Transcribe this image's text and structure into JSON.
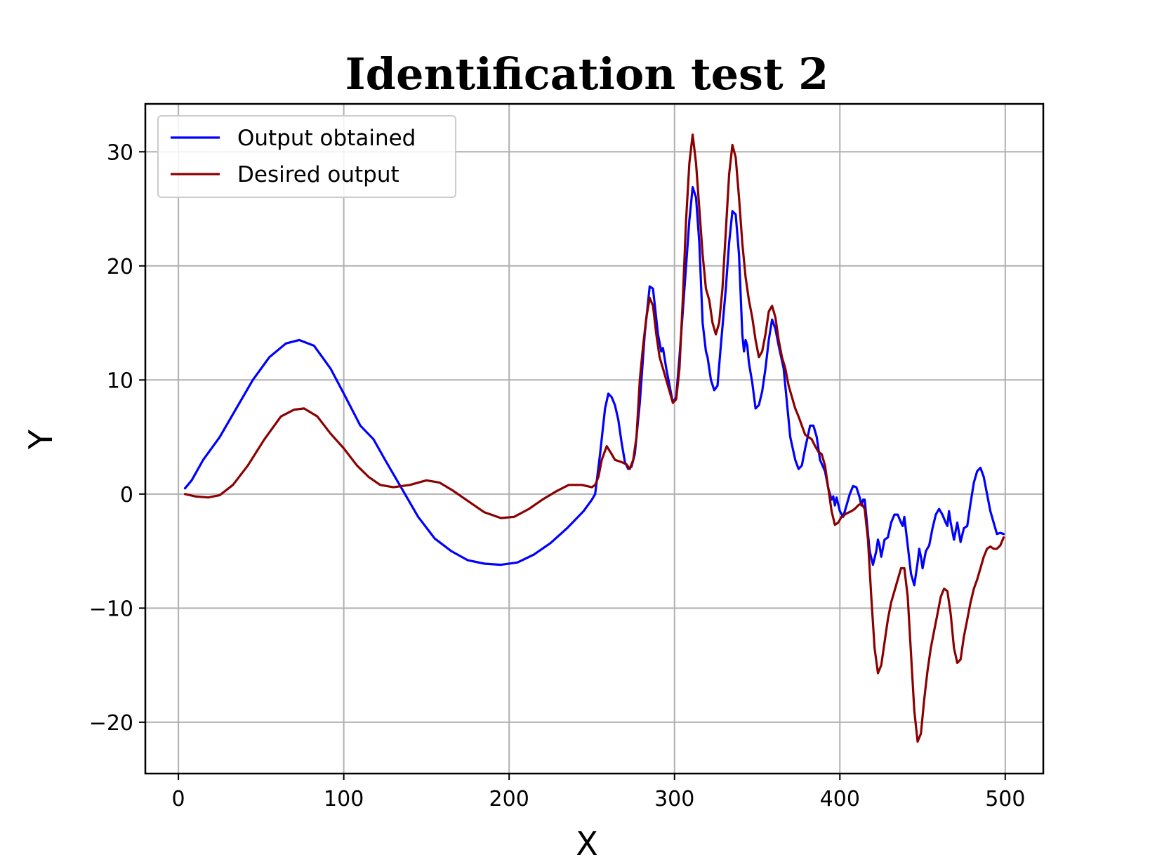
{
  "chart_data": {
    "type": "line",
    "title": "Identification test 2",
    "xlabel": "X",
    "ylabel": "Y",
    "xlim": [
      -20,
      523
    ],
    "ylim": [
      -24.5,
      34.2
    ],
    "xticks": [
      0,
      100,
      200,
      300,
      400,
      500
    ],
    "xtick_labels": [
      "0",
      "100",
      "200",
      "300",
      "400",
      "500"
    ],
    "yticks": [
      -20,
      -10,
      0,
      10,
      20,
      30
    ],
    "ytick_labels": [
      "−20",
      "−10",
      "0",
      "10",
      "20",
      "30"
    ],
    "grid": true,
    "legend_position": "upper-left",
    "series": [
      {
        "name": "Output obtained",
        "color": "#0000ff",
        "points": [
          [
            4,
            0.5
          ],
          [
            8,
            1.2
          ],
          [
            15,
            3.0
          ],
          [
            25,
            5.0
          ],
          [
            35,
            7.5
          ],
          [
            45,
            10.0
          ],
          [
            55,
            12.0
          ],
          [
            65,
            13.2
          ],
          [
            73,
            13.5
          ],
          [
            82,
            13.0
          ],
          [
            92,
            11.0
          ],
          [
            100,
            8.8
          ],
          [
            110,
            6.0
          ],
          [
            118,
            4.8
          ],
          [
            125,
            3.0
          ],
          [
            135,
            0.5
          ],
          [
            145,
            -2.0
          ],
          [
            155,
            -3.9
          ],
          [
            165,
            -5.0
          ],
          [
            175,
            -5.8
          ],
          [
            185,
            -6.1
          ],
          [
            195,
            -6.2
          ],
          [
            205,
            -6.0
          ],
          [
            215,
            -5.3
          ],
          [
            225,
            -4.3
          ],
          [
            235,
            -3.0
          ],
          [
            245,
            -1.5
          ],
          [
            250,
            -0.5
          ],
          [
            252,
            0
          ],
          [
            255,
            3.5
          ],
          [
            258,
            7.5
          ],
          [
            260,
            8.8
          ],
          [
            262,
            8.5
          ],
          [
            264,
            7.8
          ],
          [
            266,
            6.5
          ],
          [
            268,
            4.5
          ],
          [
            270,
            2.8
          ],
          [
            272,
            2.2
          ],
          [
            274,
            2.4
          ],
          [
            276,
            3.5
          ],
          [
            279,
            8.0
          ],
          [
            282,
            14.0
          ],
          [
            285,
            18.2
          ],
          [
            287,
            18.0
          ],
          [
            290,
            14.0
          ],
          [
            292,
            12.5
          ],
          [
            293,
            12.8
          ],
          [
            295,
            11.0
          ],
          [
            297,
            9.5
          ],
          [
            299,
            8.0
          ],
          [
            301,
            8.5
          ],
          [
            303,
            12.0
          ],
          [
            306,
            18.0
          ],
          [
            309,
            24.0
          ],
          [
            311,
            26.9
          ],
          [
            313,
            26.0
          ],
          [
            315,
            22.0
          ],
          [
            317,
            15.0
          ],
          [
            319,
            12.5
          ],
          [
            320,
            12.0
          ],
          [
            322,
            10.0
          ],
          [
            324,
            9.1
          ],
          [
            326,
            9.5
          ],
          [
            328,
            13.0
          ],
          [
            331,
            18.0
          ],
          [
            333,
            22.0
          ],
          [
            335,
            24.8
          ],
          [
            337,
            24.5
          ],
          [
            339,
            21.0
          ],
          [
            341,
            14.0
          ],
          [
            342,
            12.5
          ],
          [
            343,
            13.5
          ],
          [
            344,
            13.0
          ],
          [
            345,
            11.5
          ],
          [
            347,
            9.8
          ],
          [
            349,
            7.5
          ],
          [
            351,
            7.8
          ],
          [
            353,
            9.0
          ],
          [
            355,
            11.0
          ],
          [
            357,
            13.5
          ],
          [
            359,
            15.3
          ],
          [
            361,
            14.5
          ],
          [
            363,
            13.0
          ],
          [
            366,
            11.0
          ],
          [
            368,
            8.0
          ],
          [
            370,
            5.0
          ],
          [
            373,
            3.0
          ],
          [
            375,
            2.2
          ],
          [
            377,
            2.5
          ],
          [
            379,
            4.0
          ],
          [
            382,
            6.0
          ],
          [
            384,
            6.0
          ],
          [
            386,
            5.0
          ],
          [
            388,
            3.0
          ],
          [
            391,
            2.0
          ],
          [
            393,
            0.5
          ],
          [
            395,
            -0.5
          ],
          [
            396,
            -0.2
          ],
          [
            397,
            -1.0
          ],
          [
            398,
            -0.3
          ],
          [
            400,
            -1.5
          ],
          [
            402,
            -2.0
          ],
          [
            404,
            -1.0
          ],
          [
            406,
            0
          ],
          [
            408,
            0.7
          ],
          [
            410,
            0.6
          ],
          [
            412,
            -0.3
          ],
          [
            413,
            -1.0
          ],
          [
            414,
            -0.5
          ],
          [
            415,
            -0.5
          ],
          [
            416,
            -2.0
          ],
          [
            418,
            -5.0
          ],
          [
            420,
            -6.2
          ],
          [
            422,
            -5.0
          ],
          [
            423,
            -4.0
          ],
          [
            424,
            -4.5
          ],
          [
            425,
            -5.5
          ],
          [
            427,
            -4.0
          ],
          [
            429,
            -3.8
          ],
          [
            431,
            -2.5
          ],
          [
            433,
            -1.8
          ],
          [
            435,
            -1.8
          ],
          [
            437,
            -2.5
          ],
          [
            438,
            -2.8
          ],
          [
            439,
            -2.0
          ],
          [
            441,
            -4.5
          ],
          [
            443,
            -7.0
          ],
          [
            445,
            -8.0
          ],
          [
            447,
            -6.0
          ],
          [
            448,
            -4.8
          ],
          [
            449,
            -5.5
          ],
          [
            450,
            -6.5
          ],
          [
            452,
            -5.0
          ],
          [
            454,
            -4.5
          ],
          [
            456,
            -3.0
          ],
          [
            458,
            -1.8
          ],
          [
            460,
            -1.3
          ],
          [
            462,
            -1.8
          ],
          [
            464,
            -2.5
          ],
          [
            465,
            -2.8
          ],
          [
            466,
            -1.5
          ],
          [
            467,
            -2.5
          ],
          [
            469,
            -4.0
          ],
          [
            471,
            -2.5
          ],
          [
            473,
            -4.2
          ],
          [
            475,
            -3.0
          ],
          [
            477,
            -2.8
          ],
          [
            479,
            -0.8
          ],
          [
            481,
            1.0
          ],
          [
            483,
            2.0
          ],
          [
            485,
            2.3
          ],
          [
            487,
            1.5
          ],
          [
            489,
            0
          ],
          [
            491,
            -1.5
          ],
          [
            493,
            -2.5
          ],
          [
            495,
            -3.5
          ],
          [
            497,
            -3.4
          ],
          [
            499,
            -3.5
          ]
        ]
      },
      {
        "name": "Desired output",
        "color": "#8b0000",
        "points": [
          [
            4,
            0
          ],
          [
            10,
            -0.2
          ],
          [
            18,
            -0.3
          ],
          [
            25,
            -0.1
          ],
          [
            33,
            0.8
          ],
          [
            42,
            2.5
          ],
          [
            52,
            4.8
          ],
          [
            62,
            6.8
          ],
          [
            70,
            7.4
          ],
          [
            76,
            7.5
          ],
          [
            84,
            6.8
          ],
          [
            92,
            5.3
          ],
          [
            100,
            4.0
          ],
          [
            108,
            2.5
          ],
          [
            115,
            1.5
          ],
          [
            122,
            0.8
          ],
          [
            130,
            0.6
          ],
          [
            140,
            0.8
          ],
          [
            150,
            1.2
          ],
          [
            158,
            1.0
          ],
          [
            166,
            0.3
          ],
          [
            175,
            -0.6
          ],
          [
            185,
            -1.6
          ],
          [
            195,
            -2.1
          ],
          [
            203,
            -2.0
          ],
          [
            212,
            -1.3
          ],
          [
            220,
            -0.5
          ],
          [
            228,
            0.2
          ],
          [
            236,
            0.8
          ],
          [
            244,
            0.8
          ],
          [
            250,
            0.6
          ],
          [
            252,
            0.8
          ],
          [
            254,
            1.5
          ],
          [
            256,
            3.0
          ],
          [
            259,
            4.2
          ],
          [
            262,
            3.5
          ],
          [
            264,
            3.0
          ],
          [
            268,
            2.8
          ],
          [
            271,
            2.6
          ],
          [
            273,
            2.2
          ],
          [
            275,
            3.0
          ],
          [
            277,
            5.0
          ],
          [
            279,
            10.0
          ],
          [
            281,
            13.0
          ],
          [
            283,
            15.5
          ],
          [
            285,
            17.2
          ],
          [
            287,
            16.5
          ],
          [
            289,
            14.0
          ],
          [
            291,
            12.0
          ],
          [
            293,
            11.0
          ],
          [
            295,
            10.0
          ],
          [
            297,
            9.0
          ],
          [
            299,
            8.0
          ],
          [
            301,
            8.3
          ],
          [
            303,
            11.0
          ],
          [
            305,
            17.0
          ],
          [
            307,
            24.0
          ],
          [
            309,
            29.0
          ],
          [
            311,
            31.5
          ],
          [
            313,
            29.0
          ],
          [
            315,
            25.0
          ],
          [
            317,
            21.0
          ],
          [
            319,
            18.0
          ],
          [
            321,
            17.0
          ],
          [
            323,
            15.0
          ],
          [
            325,
            14.0
          ],
          [
            327,
            15.0
          ],
          [
            329,
            18.0
          ],
          [
            331,
            23.0
          ],
          [
            333,
            28.0
          ],
          [
            335,
            30.6
          ],
          [
            337,
            29.5
          ],
          [
            339,
            26.0
          ],
          [
            341,
            22.0
          ],
          [
            343,
            19.0
          ],
          [
            345,
            17.0
          ],
          [
            347,
            15.5
          ],
          [
            349,
            13.5
          ],
          [
            351,
            12.0
          ],
          [
            353,
            12.5
          ],
          [
            355,
            14.0
          ],
          [
            357,
            16.0
          ],
          [
            359,
            16.5
          ],
          [
            361,
            15.5
          ],
          [
            363,
            13.5
          ],
          [
            365,
            12.0
          ],
          [
            367,
            11.0
          ],
          [
            369,
            9.5
          ],
          [
            371,
            8.5
          ],
          [
            373,
            7.5
          ],
          [
            375,
            6.8
          ],
          [
            377,
            6.0
          ],
          [
            379,
            5.2
          ],
          [
            381,
            5.0
          ],
          [
            383,
            4.8
          ],
          [
            385,
            4.2
          ],
          [
            387,
            3.7
          ],
          [
            389,
            3.5
          ],
          [
            391,
            2.5
          ],
          [
            393,
            0.5
          ],
          [
            395,
            -1.5
          ],
          [
            397,
            -2.7
          ],
          [
            399,
            -2.5
          ],
          [
            401,
            -2.0
          ],
          [
            404,
            -1.7
          ],
          [
            407,
            -1.5
          ],
          [
            409,
            -1.3
          ],
          [
            411,
            -1.0
          ],
          [
            413,
            -0.8
          ],
          [
            415,
            -1.3
          ],
          [
            417,
            -4.0
          ],
          [
            419,
            -9.0
          ],
          [
            421,
            -13.5
          ],
          [
            423,
            -15.7
          ],
          [
            425,
            -15.0
          ],
          [
            427,
            -13.0
          ],
          [
            429,
            -11.0
          ],
          [
            431,
            -9.5
          ],
          [
            433,
            -8.5
          ],
          [
            435,
            -7.5
          ],
          [
            437,
            -6.5
          ],
          [
            439,
            -6.5
          ],
          [
            441,
            -9.0
          ],
          [
            443,
            -14.0
          ],
          [
            445,
            -19.0
          ],
          [
            447,
            -21.7
          ],
          [
            449,
            -21.0
          ],
          [
            451,
            -18.0
          ],
          [
            453,
            -15.5
          ],
          [
            455,
            -13.5
          ],
          [
            457,
            -12.0
          ],
          [
            459,
            -10.5
          ],
          [
            461,
            -9.0
          ],
          [
            463,
            -8.3
          ],
          [
            465,
            -8.5
          ],
          [
            467,
            -10.5
          ],
          [
            469,
            -13.5
          ],
          [
            471,
            -14.8
          ],
          [
            473,
            -14.5
          ],
          [
            475,
            -12.5
          ],
          [
            477,
            -11.0
          ],
          [
            479,
            -9.5
          ],
          [
            481,
            -8.3
          ],
          [
            483,
            -7.5
          ],
          [
            485,
            -6.5
          ],
          [
            487,
            -5.5
          ],
          [
            489,
            -4.8
          ],
          [
            491,
            -4.6
          ],
          [
            493,
            -4.8
          ],
          [
            495,
            -4.8
          ],
          [
            497,
            -4.5
          ],
          [
            499,
            -3.8
          ]
        ]
      }
    ]
  }
}
